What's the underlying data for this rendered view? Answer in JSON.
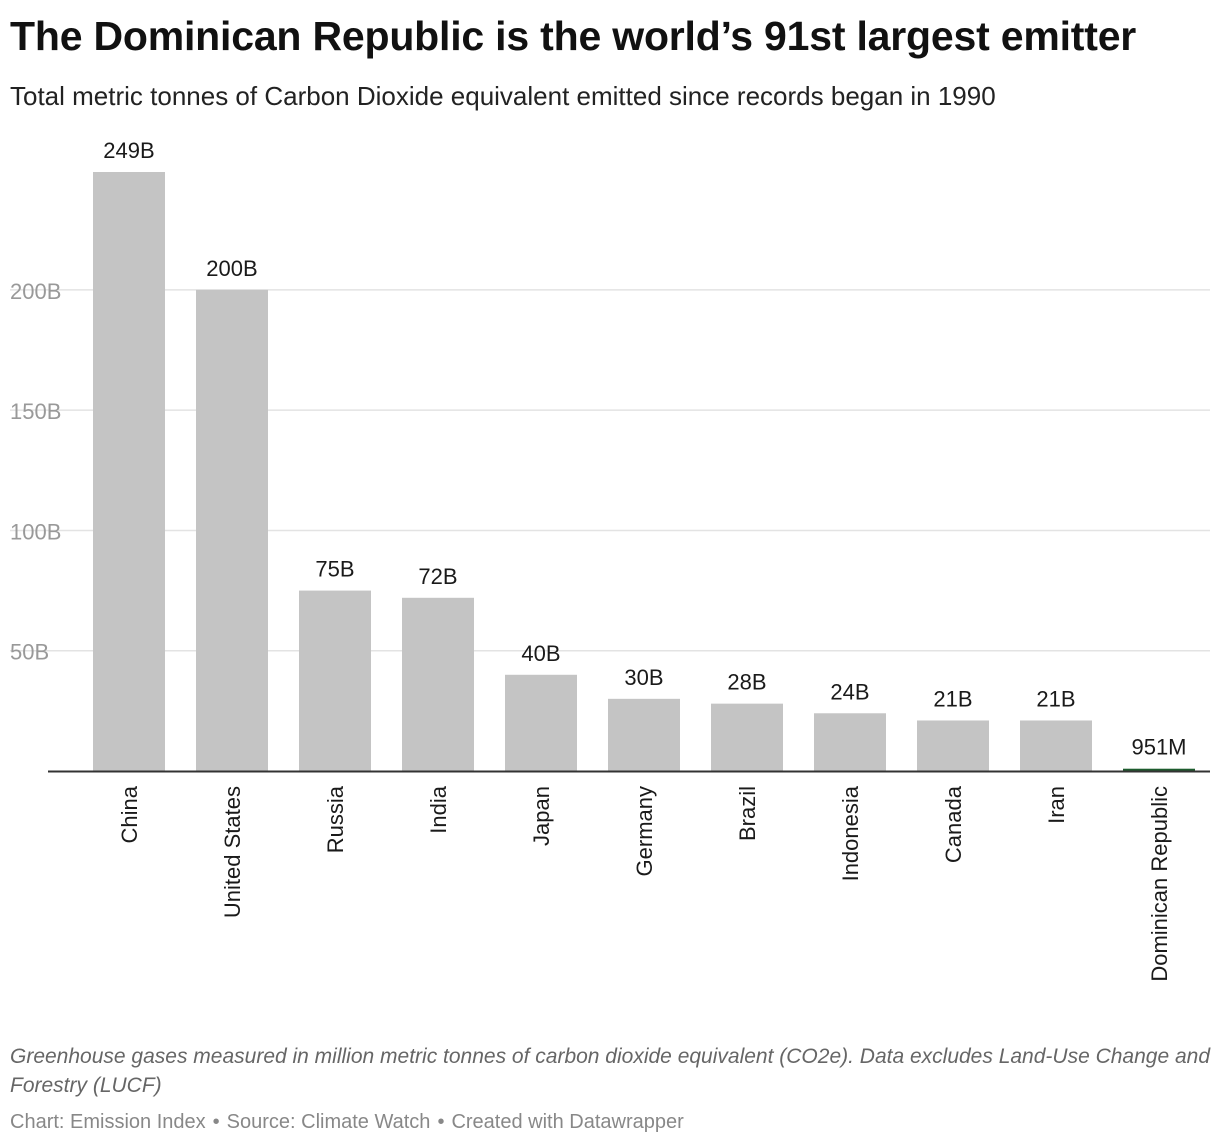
{
  "title": "The Dominican Republic is the world’s 91st largest emitter",
  "subtitle": "Total metric tonnes of Carbon Dioxide equivalent emitted since records began in 1990",
  "notes": "Greenhouse gases measured in million metric tonnes of carbon dioxide equivalent (CO2e). Data excludes Land-Use Change and Forestry (LUCF)",
  "credits": {
    "chart": "Chart: Emission Index",
    "source": "Source: Climate Watch",
    "created": "Created with Datawrapper",
    "separator": "•"
  },
  "chart_data": {
    "type": "bar",
    "categories": [
      "China",
      "United States",
      "Russia",
      "India",
      "Japan",
      "Germany",
      "Brazil",
      "Indonesia",
      "Canada",
      "Iran",
      "Dominican Republic"
    ],
    "values": [
      249,
      200,
      75,
      72,
      40,
      30,
      28,
      24,
      21,
      21,
      0.951
    ],
    "value_labels": [
      "249B",
      "200B",
      "75B",
      "72B",
      "40B",
      "30B",
      "28B",
      "24B",
      "21B",
      "21B",
      "951M"
    ],
    "unit": "billion tonnes CO2e",
    "y_ticks": [
      50,
      100,
      150,
      200
    ],
    "y_tick_labels": [
      "50B",
      "100B",
      "150B",
      "200B"
    ],
    "ylim": [
      0,
      249
    ],
    "grid": true,
    "colors": {
      "bar": "#c4c4c4",
      "highlight": "#1d5c2e",
      "grid": "#e3e3e3",
      "axis": "#333333",
      "tick_label": "#999999",
      "value_label": "#1a1a1a"
    }
  }
}
